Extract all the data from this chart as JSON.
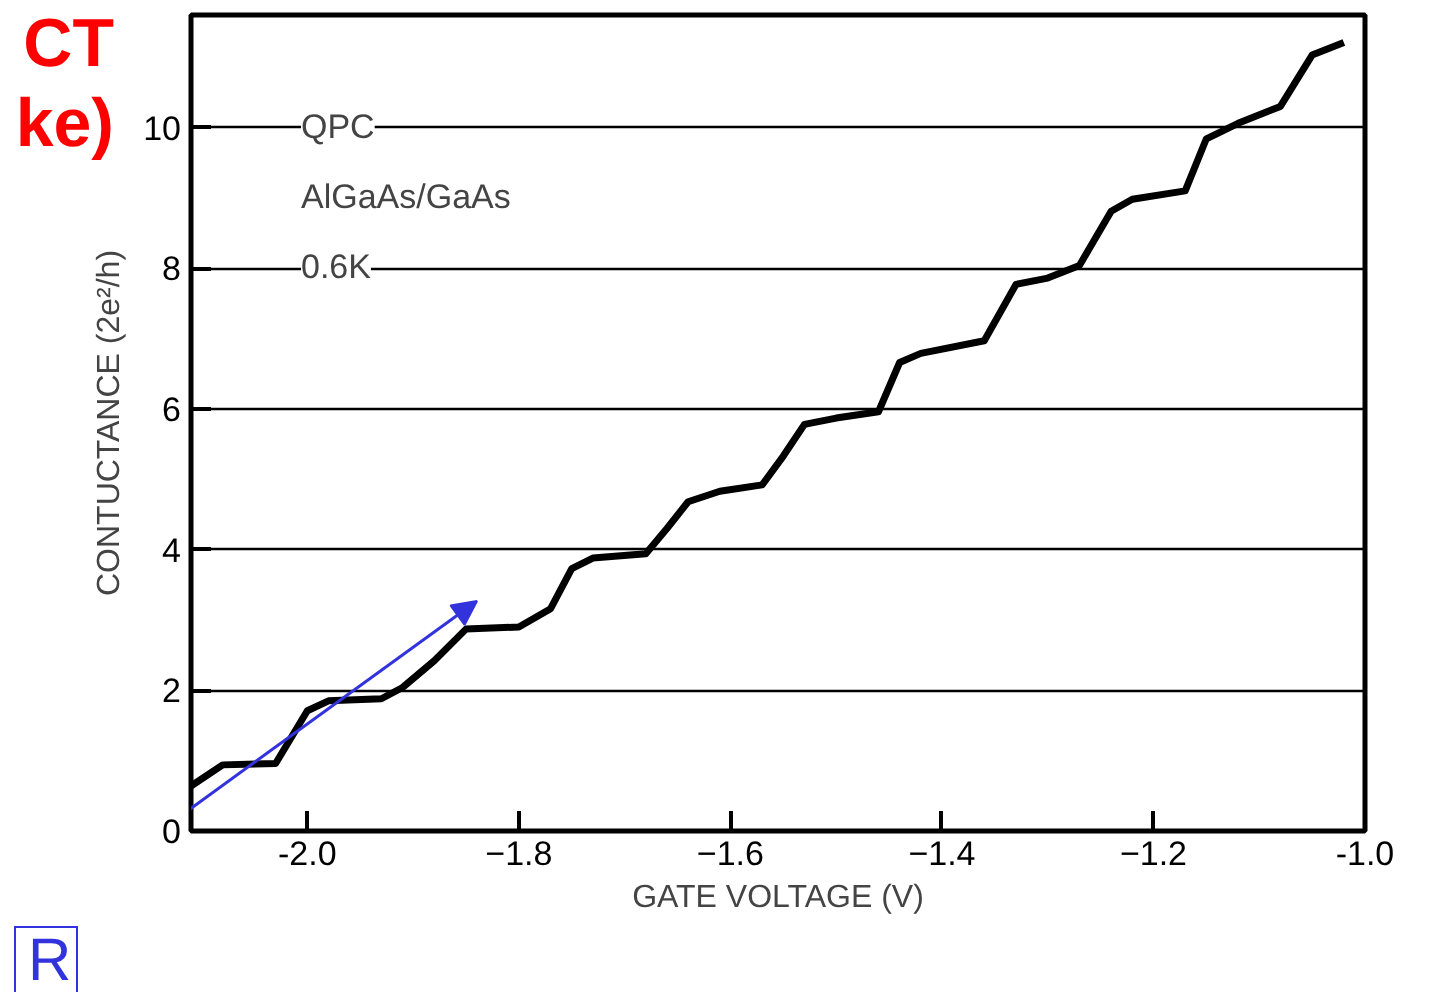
{
  "chart_data": {
    "type": "line",
    "xlabel": "GATE VOLTAGE (V)",
    "ylabel": "CONTUCTANCE (2e²/h)",
    "x": [
      -2.11,
      -2.08,
      -2.03,
      -2.0,
      -1.98,
      -1.93,
      -1.91,
      -1.88,
      -1.85,
      -1.8,
      -1.77,
      -1.75,
      -1.73,
      -1.68,
      -1.66,
      -1.64,
      -1.61,
      -1.57,
      -1.55,
      -1.53,
      -1.5,
      -1.46,
      -1.44,
      -1.42,
      -1.36,
      -1.33,
      -1.3,
      -1.27,
      -1.24,
      -1.22,
      -1.17,
      -1.15,
      -1.12,
      -1.08,
      -1.05,
      -1.02
    ],
    "series": [
      {
        "color": "#000000",
        "values": [
          0.64,
          0.94,
          0.96,
          1.71,
          1.85,
          1.88,
          2.04,
          2.42,
          2.87,
          2.9,
          3.16,
          3.73,
          3.88,
          3.94,
          4.3,
          4.68,
          4.83,
          4.92,
          5.33,
          5.78,
          5.87,
          5.96,
          6.66,
          6.79,
          6.97,
          7.77,
          7.86,
          8.04,
          8.81,
          8.98,
          9.1,
          9.84,
          10.06,
          10.3,
          11.03,
          11.21
        ]
      }
    ],
    "xlim": [
      -2.11,
      -1.0
    ],
    "xticks": [
      {
        "value": -2.0,
        "label": "-2.0"
      },
      -1.8,
      -1.6,
      -1.4,
      -1.2,
      {
        "value": -1.0,
        "label": "-1.0"
      }
    ],
    "ylim": [
      0,
      11.6
    ],
    "yticks": [
      0,
      2,
      4,
      6,
      8,
      10
    ],
    "grid": "y",
    "marker": "none",
    "line_style": "solid",
    "annotations": [
      "QPC",
      "AlGaAs/GaAs",
      "0.6K",
      "CT",
      "ke)",
      "R"
    ]
  }
}
